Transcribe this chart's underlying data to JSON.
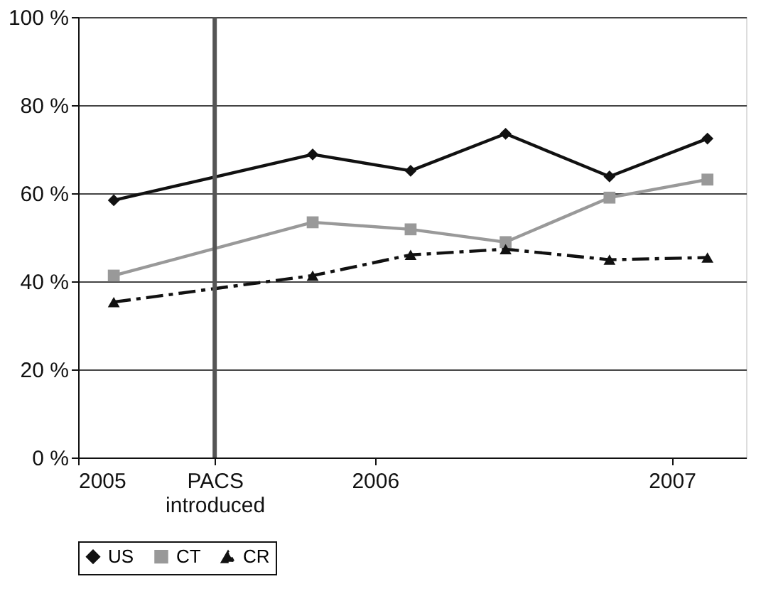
{
  "chart_data": {
    "type": "line",
    "xlim": [
      2005,
      2007.25
    ],
    "xticks": [
      2005,
      {
        "value": 2005.46,
        "label": "PACS introduced"
      },
      2006,
      2007
    ],
    "ylim": [
      0,
      100
    ],
    "yticks": [
      {
        "value": 0,
        "label": "0 %"
      },
      {
        "value": 20,
        "label": "20 %"
      },
      {
        "value": 40,
        "label": "40 %"
      },
      {
        "value": 60,
        "label": "60 %"
      },
      {
        "value": 80,
        "label": "80 %"
      },
      {
        "value": 100,
        "label": "100 %"
      }
    ],
    "grid": "y",
    "legend": "bottom",
    "x": [
      2005.12,
      2005.79,
      2006.12,
      2006.44,
      2006.79,
      2007.12
    ],
    "series": [
      {
        "name": "US",
        "color": "#111111",
        "marker": "diamond",
        "line_style": "solid",
        "values": [
          58.4,
          68.8,
          65.1,
          73.5,
          63.8,
          72.4
        ]
      },
      {
        "name": "CT",
        "color": "#999999",
        "marker": "square",
        "line_style": "solid",
        "values": [
          41.3,
          53.4,
          51.8,
          48.9,
          59.0,
          63.1
        ]
      },
      {
        "name": "CR",
        "color": "#111111",
        "marker": "triangle",
        "line_style": "dashed",
        "values": [
          35.3,
          41.3,
          46.0,
          47.3,
          44.9,
          45.4
        ]
      }
    ],
    "ref_lines": [
      {
        "axis": "x",
        "value": 2005.46,
        "color": "#555555"
      }
    ]
  }
}
